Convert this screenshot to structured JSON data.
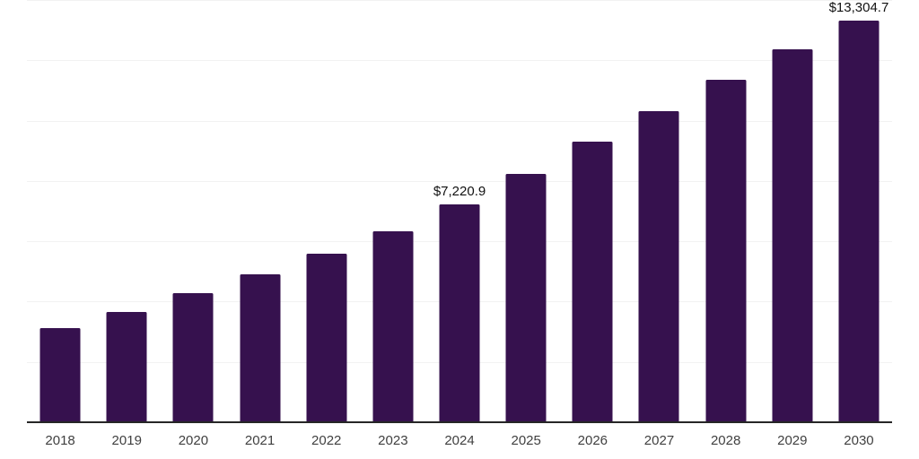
{
  "chart_data": {
    "type": "bar",
    "title": "",
    "xlabel": "",
    "ylabel": "",
    "categories": [
      "2018",
      "2019",
      "2020",
      "2021",
      "2022",
      "2023",
      "2024",
      "2025",
      "2026",
      "2027",
      "2028",
      "2029",
      "2030"
    ],
    "values": [
      3130,
      3660,
      4290,
      4910,
      5590,
      6330,
      7220.9,
      8230,
      9300,
      10330,
      11370,
      12380,
      13304.7
    ],
    "data_labels": [
      {
        "index": 6,
        "text": "$7,220.9"
      },
      {
        "index": 12,
        "text": "$13,304.7"
      }
    ],
    "ylim": [
      0,
      14000
    ],
    "gridline_interval": 2000,
    "grid": true,
    "legend": false,
    "y_axis_tick_labels_visible": false,
    "value_format": "USD with thousands separator, one decimal"
  },
  "style": {
    "background": "#ffffff",
    "bar_color": "#36114e",
    "gridline_color": "#f2f2f2",
    "axis_line_color": "#262626",
    "tick_label_color": "#404040",
    "data_label_color": "#111111"
  }
}
